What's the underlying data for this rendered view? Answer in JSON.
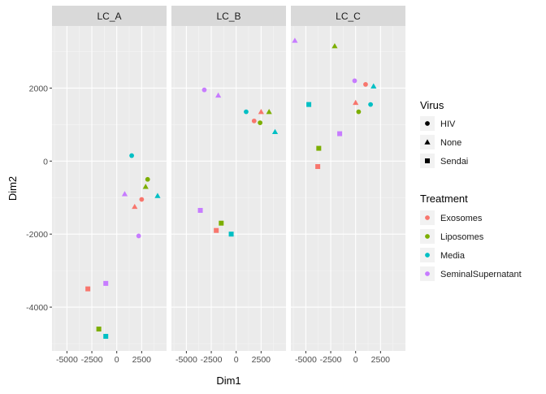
{
  "chart_data": {
    "type": "scatter",
    "facets": [
      "LC_A",
      "LC_B",
      "LC_C"
    ],
    "xlabel": "Dim1",
    "ylabel": "Dim2",
    "xlim": [
      -6500,
      5000
    ],
    "ylim": [
      -5200,
      3700
    ],
    "x_ticks": [
      -5000,
      -2500,
      0,
      2500
    ],
    "x_tick_labels": [
      "-5000",
      "-2500",
      "0",
      "2500"
    ],
    "y_ticks": [
      -4000,
      -2000,
      0,
      2000
    ],
    "y_tick_labels": [
      "-4000",
      "-2000",
      "0",
      "2000"
    ],
    "grid": true,
    "legend_position": "right",
    "legends": {
      "virus": {
        "title": "Virus",
        "entries": [
          {
            "label": "HIV",
            "shape": "circle"
          },
          {
            "label": "None",
            "shape": "triangle"
          },
          {
            "label": "Sendai",
            "shape": "square"
          }
        ]
      },
      "treatment": {
        "title": "Treatment",
        "entries": [
          {
            "label": "Exosomes",
            "color": "#F8766D"
          },
          {
            "label": "Liposomes",
            "color": "#7CAE00"
          },
          {
            "label": "Media",
            "color": "#00BFC4"
          },
          {
            "label": "SeminalSupernatant",
            "color": "#C77CFF"
          }
        ]
      }
    },
    "points": [
      {
        "facet": "LC_A",
        "x": 3100,
        "y": -500,
        "virus": "HIV",
        "treatment": "Liposomes"
      },
      {
        "facet": "LC_A",
        "x": 2500,
        "y": -1050,
        "virus": "HIV",
        "treatment": "Exosomes"
      },
      {
        "facet": "LC_A",
        "x": 1500,
        "y": 150,
        "virus": "HIV",
        "treatment": "Media"
      },
      {
        "facet": "LC_A",
        "x": 2200,
        "y": -2050,
        "virus": "HIV",
        "treatment": "SeminalSupernatant"
      },
      {
        "facet": "LC_A",
        "x": 2900,
        "y": -700,
        "virus": "None",
        "treatment": "Liposomes"
      },
      {
        "facet": "LC_A",
        "x": 4100,
        "y": -950,
        "virus": "None",
        "treatment": "Media"
      },
      {
        "facet": "LC_A",
        "x": 1800,
        "y": -1250,
        "virus": "None",
        "treatment": "Exosomes"
      },
      {
        "facet": "LC_A",
        "x": 800,
        "y": -900,
        "virus": "None",
        "treatment": "SeminalSupernatant"
      },
      {
        "facet": "LC_A",
        "x": -2900,
        "y": -3500,
        "virus": "Sendai",
        "treatment": "Exosomes"
      },
      {
        "facet": "LC_A",
        "x": -1100,
        "y": -3350,
        "virus": "Sendai",
        "treatment": "SeminalSupernatant"
      },
      {
        "facet": "LC_A",
        "x": -1800,
        "y": -4600,
        "virus": "Sendai",
        "treatment": "Liposomes"
      },
      {
        "facet": "LC_A",
        "x": -1100,
        "y": -4800,
        "virus": "Sendai",
        "treatment": "Media"
      },
      {
        "facet": "LC_B",
        "x": -3200,
        "y": 1950,
        "virus": "HIV",
        "treatment": "SeminalSupernatant"
      },
      {
        "facet": "LC_B",
        "x": 1000,
        "y": 1350,
        "virus": "HIV",
        "treatment": "Media"
      },
      {
        "facet": "LC_B",
        "x": 1800,
        "y": 1100,
        "virus": "HIV",
        "treatment": "Exosomes"
      },
      {
        "facet": "LC_B",
        "x": 2400,
        "y": 1050,
        "virus": "HIV",
        "treatment": "Liposomes"
      },
      {
        "facet": "LC_B",
        "x": -1800,
        "y": 1800,
        "virus": "None",
        "treatment": "SeminalSupernatant"
      },
      {
        "facet": "LC_B",
        "x": 2500,
        "y": 1350,
        "virus": "None",
        "treatment": "Exosomes"
      },
      {
        "facet": "LC_B",
        "x": 3300,
        "y": 1350,
        "virus": "None",
        "treatment": "Liposomes"
      },
      {
        "facet": "LC_B",
        "x": 3900,
        "y": 800,
        "virus": "None",
        "treatment": "Media"
      },
      {
        "facet": "LC_B",
        "x": -3600,
        "y": -1350,
        "virus": "Sendai",
        "treatment": "SeminalSupernatant"
      },
      {
        "facet": "LC_B",
        "x": -1500,
        "y": -1700,
        "virus": "Sendai",
        "treatment": "Liposomes"
      },
      {
        "facet": "LC_B",
        "x": -2000,
        "y": -1900,
        "virus": "Sendai",
        "treatment": "Exosomes"
      },
      {
        "facet": "LC_B",
        "x": -500,
        "y": -2000,
        "virus": "Sendai",
        "treatment": "Media"
      },
      {
        "facet": "LC_C",
        "x": -100,
        "y": 2200,
        "virus": "HIV",
        "treatment": "SeminalSupernatant"
      },
      {
        "facet": "LC_C",
        "x": 1000,
        "y": 2100,
        "virus": "HIV",
        "treatment": "Exosomes"
      },
      {
        "facet": "LC_C",
        "x": 1500,
        "y": 1550,
        "virus": "HIV",
        "treatment": "Media"
      },
      {
        "facet": "LC_C",
        "x": 300,
        "y": 1350,
        "virus": "HIV",
        "treatment": "Liposomes"
      },
      {
        "facet": "LC_C",
        "x": -6100,
        "y": 3300,
        "virus": "None",
        "treatment": "SeminalSupernatant"
      },
      {
        "facet": "LC_C",
        "x": -2100,
        "y": 3150,
        "virus": "None",
        "treatment": "Liposomes"
      },
      {
        "facet": "LC_C",
        "x": 1800,
        "y": 2050,
        "virus": "None",
        "treatment": "Media"
      },
      {
        "facet": "LC_C",
        "x": 0,
        "y": 1600,
        "virus": "None",
        "treatment": "Exosomes"
      },
      {
        "facet": "LC_C",
        "x": -4700,
        "y": 1550,
        "virus": "Sendai",
        "treatment": "Media"
      },
      {
        "facet": "LC_C",
        "x": -1600,
        "y": 750,
        "virus": "Sendai",
        "treatment": "SeminalSupernatant"
      },
      {
        "facet": "LC_C",
        "x": -3700,
        "y": 350,
        "virus": "Sendai",
        "treatment": "Liposomes"
      },
      {
        "facet": "LC_C",
        "x": -3800,
        "y": -150,
        "virus": "Sendai",
        "treatment": "Exosomes"
      }
    ]
  }
}
